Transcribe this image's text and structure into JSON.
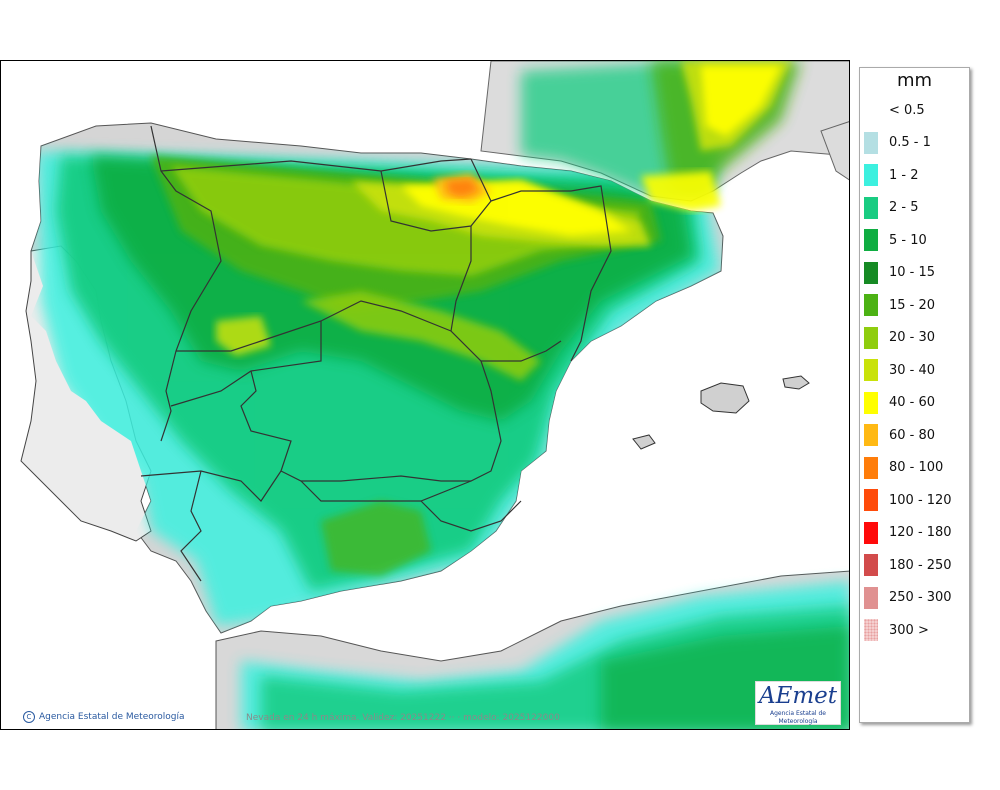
{
  "legend": {
    "title": "mm",
    "items": [
      {
        "label": "< 0.5",
        "color": ""
      },
      {
        "label": "0.5 - 1",
        "color": "#b4dfe3"
      },
      {
        "label": "1 - 2",
        "color": "#3cf0df"
      },
      {
        "label": "2 - 5",
        "color": "#19cc82"
      },
      {
        "label": "5 - 10",
        "color": "#0fad42"
      },
      {
        "label": "10 - 15",
        "color": "#168a24"
      },
      {
        "label": "15 - 20",
        "color": "#4cb214"
      },
      {
        "label": "20 - 30",
        "color": "#8fcd0e"
      },
      {
        "label": "30 - 40",
        "color": "#c9e20a"
      },
      {
        "label": "40 - 60",
        "color": "#ffff00"
      },
      {
        "label": "60 - 80",
        "color": "#ffb914"
      },
      {
        "label": "80 - 100",
        "color": "#ff7d0a"
      },
      {
        "label": "100 - 120",
        "color": "#ff4b0a"
      },
      {
        "label": "120 - 180",
        "color": "#ff0a0a"
      },
      {
        "label": "180 - 250",
        "color": "#d24b4b"
      },
      {
        "label": "250 - 300",
        "color": "#e09191"
      },
      {
        "label": "300 >",
        "color": "#f5cfcf"
      }
    ]
  },
  "map": {
    "copyright": "Agencia Estatal de Meteorología",
    "caption": "Nevada en 24 h máxima. Validez: 20251222 ·· · modelo: 2025122000",
    "logo_text": "AEmet",
    "logo_subtitle": "Agencia Estatal de Meteorología",
    "colors": {
      "land": "#d8d8d8",
      "sea": "#ffffff",
      "border": "#2a2a2a"
    }
  }
}
